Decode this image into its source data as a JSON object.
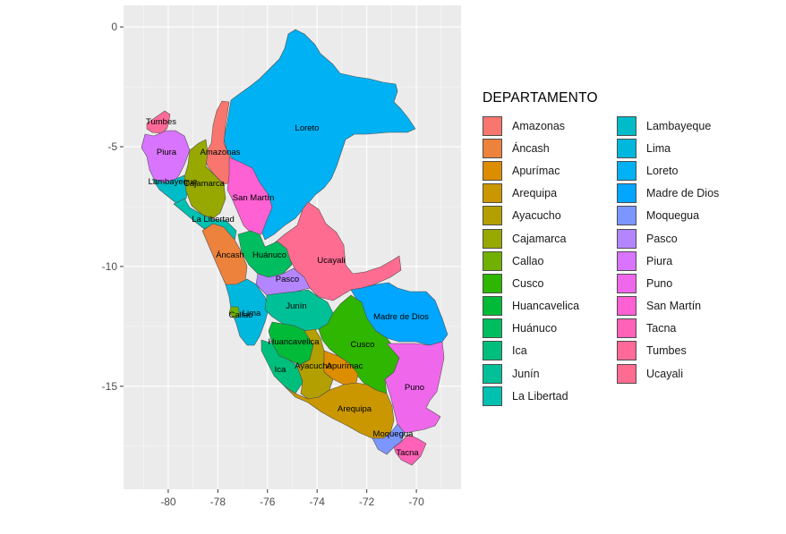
{
  "chart_data": {
    "type": "map",
    "title": "",
    "xlabel": "",
    "ylabel": "",
    "x_ticks": [
      "-80",
      "-78",
      "-76",
      "-74",
      "-72",
      "-70"
    ],
    "y_ticks": [
      "0",
      "-5",
      "-10",
      "-15"
    ],
    "xlim": [
      -81.8,
      -68.2
    ],
    "ylim": [
      -19.3,
      0.9
    ],
    "grid": true,
    "legend_position": "right",
    "legend_title": "DEPARTAMENTO",
    "regions": [
      {
        "name": "Amazonas",
        "color": "#F8766D",
        "label": "Amazonas"
      },
      {
        "name": "Áncash",
        "color": "#EC823C",
        "label": "Áncash"
      },
      {
        "name": "Apurímac",
        "color": "#DD8D00",
        "label": "Apurímac"
      },
      {
        "name": "Arequipa",
        "color": "#CA9700",
        "label": "Arequipa"
      },
      {
        "name": "Ayacucho",
        "color": "#B3A000",
        "label": "Ayacucho"
      },
      {
        "name": "Cajamarca",
        "color": "#97A900",
        "label": "Cajamarca"
      },
      {
        "name": "Callao",
        "color": "#71B000",
        "label": "Callao"
      },
      {
        "name": "Cusco",
        "color": "#2FB600",
        "label": "Cusco"
      },
      {
        "name": "Huancavelica",
        "color": "#00BA38",
        "label": "Huancavelica"
      },
      {
        "name": "Huánuco",
        "color": "#00BD5F",
        "label": "Huánuco"
      },
      {
        "name": "Ica",
        "color": "#00BF7D",
        "label": "Ica"
      },
      {
        "name": "Junín",
        "color": "#00C097",
        "label": "Junín"
      },
      {
        "name": "La Libertad",
        "color": "#00C0B0",
        "label": "La Libertad"
      },
      {
        "name": "Lambayeque",
        "color": "#00BCC8",
        "label": "Lambayeque"
      },
      {
        "name": "Lima",
        "color": "#00B8DE",
        "label": "Lima"
      },
      {
        "name": "Loreto",
        "color": "#00B1F3",
        "label": "Loreto"
      },
      {
        "name": "Madre de Dios",
        "color": "#00A6FF",
        "label": "Madre de Dios"
      },
      {
        "name": "Moquegua",
        "color": "#7C96FF",
        "label": "Moquegua"
      },
      {
        "name": "Pasco",
        "color": "#B385FF",
        "label": "Pasco"
      },
      {
        "name": "Piura",
        "color": "#D874FD",
        "label": "Piura"
      },
      {
        "name": "Puno",
        "color": "#EF67EB",
        "label": "Puno"
      },
      {
        "name": "San Martín",
        "color": "#FD61D3",
        "label": "San Martín"
      },
      {
        "name": "Tacna",
        "color": "#FF62B6",
        "label": "Tacna"
      },
      {
        "name": "Tumbes",
        "color": "#FF6A98",
        "label": "Tumbes"
      },
      {
        "name": "Ucayali",
        "color": "#FF6C91",
        "label": "Ucayali"
      }
    ]
  }
}
